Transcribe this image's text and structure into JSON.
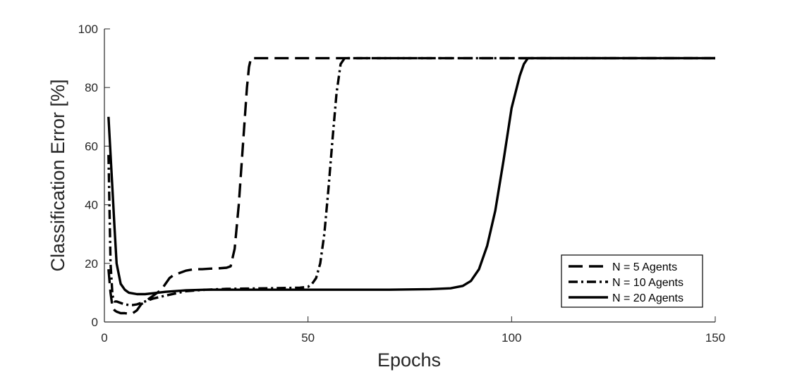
{
  "chart_data": {
    "type": "line",
    "xlabel": "Epochs",
    "ylabel": "Classification Error [%]",
    "xlim": [
      0,
      150
    ],
    "ylim": [
      0,
      100
    ],
    "xticks": [
      0,
      50,
      100,
      150
    ],
    "yticks": [
      0,
      20,
      40,
      60,
      80,
      100
    ],
    "grid": false,
    "legend_position": "bottom-right",
    "colors": {
      "line": "#000000",
      "axis": "#262626",
      "background": "#ffffff"
    },
    "series": [
      {
        "name": "N = 5 Agents",
        "style": "dashed",
        "x": [
          1,
          1.5,
          2,
          2.5,
          3,
          4,
          5,
          6,
          7,
          8,
          9,
          10,
          12,
          14,
          15,
          16,
          17,
          18,
          20,
          22,
          24,
          26,
          28,
          30,
          31,
          32,
          33,
          34,
          35,
          35.5,
          36,
          37,
          40,
          50,
          60,
          80,
          100,
          120,
          150
        ],
        "y": [
          18,
          10,
          5,
          4,
          3.5,
          3,
          3,
          2.8,
          3,
          4,
          6,
          7,
          9,
          11,
          13,
          15,
          16,
          16.5,
          17.5,
          18,
          18,
          18.2,
          18.3,
          18.5,
          19,
          25,
          40,
          60,
          80,
          87,
          90,
          90,
          90,
          90,
          90,
          90,
          90,
          90,
          90
        ]
      },
      {
        "name": "N = 10 Agents",
        "style": "dashdot",
        "x": [
          1,
          1.5,
          2,
          2.5,
          3,
          4,
          5,
          6,
          7,
          8,
          10,
          12,
          15,
          20,
          25,
          30,
          35,
          40,
          45,
          48,
          50,
          51,
          52,
          53,
          54,
          55,
          56,
          57,
          58,
          59,
          60,
          65,
          80,
          100,
          120,
          150
        ],
        "y": [
          57,
          20,
          9,
          7,
          7,
          6.5,
          6,
          5.8,
          5.8,
          6,
          7,
          8,
          9,
          10.5,
          11,
          11.3,
          11.4,
          11.5,
          11.6,
          11.7,
          12,
          13,
          15,
          20,
          30,
          45,
          62,
          78,
          88,
          90,
          90,
          90,
          90,
          90,
          90,
          90
        ]
      },
      {
        "name": "N = 20 Agents",
        "style": "solid",
        "x": [
          1,
          2,
          2.5,
          3,
          4,
          5,
          6,
          8,
          10,
          12,
          15,
          20,
          25,
          30,
          40,
          50,
          60,
          70,
          80,
          85,
          88,
          90,
          92,
          94,
          96,
          98,
          100,
          102,
          103,
          104,
          105,
          110,
          120,
          150
        ],
        "y": [
          70,
          45,
          32,
          20,
          13,
          11,
          10,
          9.5,
          9.5,
          9.8,
          10.3,
          10.8,
          11,
          11,
          11,
          11,
          11,
          11,
          11.2,
          11.5,
          12.3,
          14,
          18,
          26,
          38,
          55,
          73,
          84,
          88,
          90,
          90,
          90,
          90,
          90
        ]
      }
    ]
  }
}
